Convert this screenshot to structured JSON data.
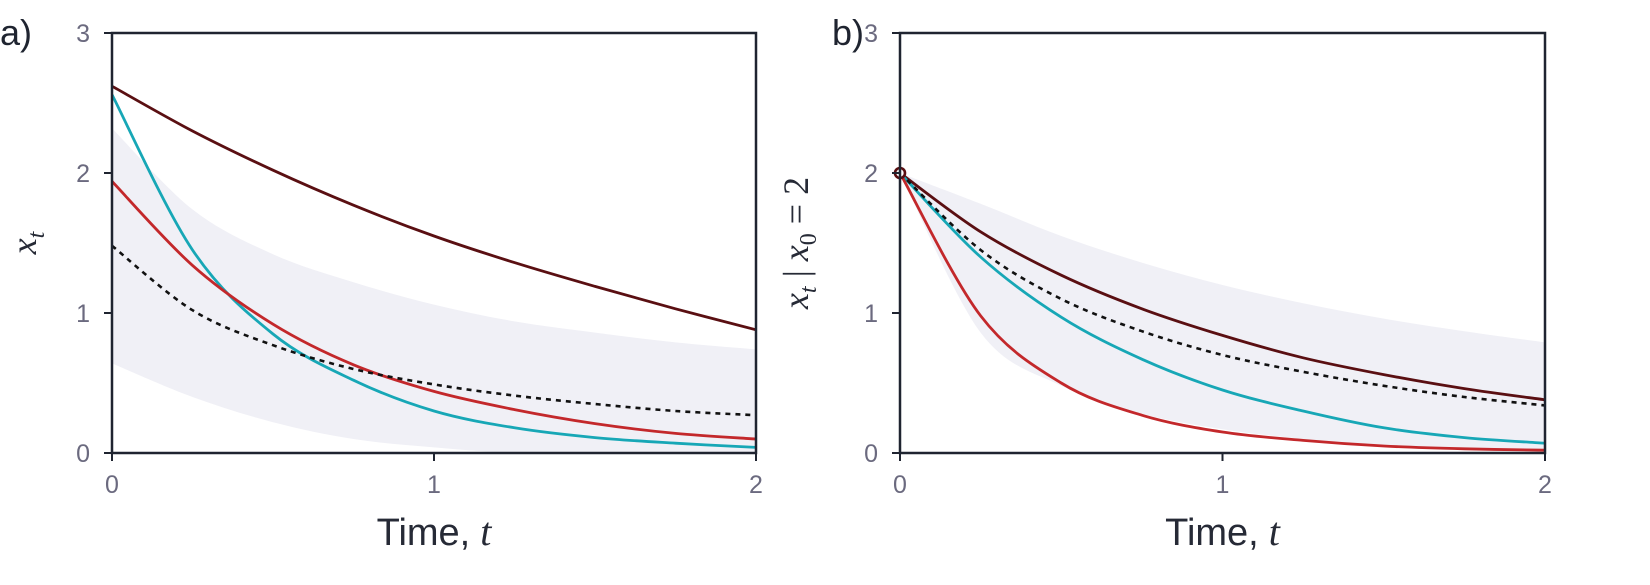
{
  "chart_data": [
    {
      "type": "line",
      "panel_label": "a)",
      "xlabel": "Time,",
      "xlabel_var": "t",
      "ylabel": {
        "main": "x",
        "sub": "t",
        "tail": "",
        "rhs_main": "",
        "rhs_sub": "",
        "rhs_value": ""
      },
      "xlim": [
        0,
        2
      ],
      "ylim": [
        0,
        3
      ],
      "xticks": [
        "0",
        "1",
        "2"
      ],
      "yticks": [
        "0",
        "1",
        "2",
        "3"
      ],
      "grid": false,
      "band": {
        "color": "#f0f0f6",
        "x": [
          0,
          0.25,
          0.5,
          0.75,
          1.0,
          1.25,
          1.5,
          1.75,
          2.0
        ],
        "upper": [
          2.32,
          1.74,
          1.42,
          1.22,
          1.06,
          0.94,
          0.86,
          0.79,
          0.74
        ],
        "lower": [
          0.64,
          0.4,
          0.22,
          0.1,
          0.04,
          0.0,
          0.0,
          0.0,
          0.0
        ]
      },
      "series": [
        {
          "color": "#5a0f12",
          "dashed": false,
          "x": [
            0,
            0.25,
            0.5,
            0.75,
            1.0,
            1.25,
            1.5,
            1.75,
            2.0
          ],
          "y": [
            2.62,
            2.3,
            2.02,
            1.77,
            1.55,
            1.36,
            1.19,
            1.03,
            0.88
          ]
        },
        {
          "color": "#17a7b6",
          "dashed": false,
          "x": [
            0,
            0.25,
            0.5,
            0.75,
            1.0,
            1.25,
            1.5,
            1.75,
            2.0
          ],
          "y": [
            2.56,
            1.45,
            0.85,
            0.52,
            0.3,
            0.18,
            0.11,
            0.07,
            0.04
          ]
        },
        {
          "color": "#c3282b",
          "dashed": false,
          "x": [
            0,
            0.25,
            0.5,
            0.75,
            1.0,
            1.25,
            1.5,
            1.75,
            2.0
          ],
          "y": [
            1.94,
            1.34,
            0.92,
            0.63,
            0.44,
            0.31,
            0.21,
            0.14,
            0.1
          ]
        },
        {
          "color": "#111111",
          "dashed": true,
          "x": [
            0,
            0.25,
            0.5,
            0.75,
            1.0,
            1.25,
            1.5,
            1.75,
            2.0
          ],
          "y": [
            1.48,
            1.02,
            0.77,
            0.6,
            0.49,
            0.41,
            0.35,
            0.3,
            0.27
          ]
        }
      ]
    },
    {
      "type": "line",
      "panel_label": "b)",
      "xlabel": "Time,",
      "xlabel_var": "t",
      "ylabel": {
        "main": "x",
        "sub": "t",
        "tail": " | ",
        "rhs_main": "x",
        "rhs_sub": "0",
        "rhs_value": " = 2"
      },
      "xlim": [
        0,
        2
      ],
      "ylim": [
        0,
        3
      ],
      "xticks": [
        "0",
        "1",
        "2"
      ],
      "yticks": [
        "0",
        "1",
        "2",
        "3"
      ],
      "grid": false,
      "start_point": {
        "x": 0,
        "y": 2,
        "color": "#5a0f12"
      },
      "band": {
        "color": "#f0f0f6",
        "x": [
          0,
          0.25,
          0.5,
          0.75,
          1.0,
          1.25,
          1.5,
          1.75,
          2.0
        ],
        "upper": [
          2.0,
          1.78,
          1.55,
          1.36,
          1.2,
          1.07,
          0.96,
          0.87,
          0.79
        ],
        "lower": [
          2.0,
          0.86,
          0.48,
          0.28,
          0.17,
          0.1,
          0.06,
          0.03,
          0.02
        ]
      },
      "series": [
        {
          "color": "#5a0f12",
          "dashed": false,
          "x": [
            0,
            0.25,
            0.5,
            0.75,
            1.0,
            1.25,
            1.5,
            1.75,
            2.0
          ],
          "y": [
            2.0,
            1.58,
            1.27,
            1.03,
            0.84,
            0.68,
            0.56,
            0.46,
            0.38
          ]
        },
        {
          "color": "#17a7b6",
          "dashed": false,
          "x": [
            0,
            0.25,
            0.5,
            0.75,
            1.0,
            1.25,
            1.5,
            1.75,
            2.0
          ],
          "y": [
            2.0,
            1.4,
            0.97,
            0.67,
            0.45,
            0.3,
            0.18,
            0.11,
            0.07
          ]
        },
        {
          "color": "#c3282b",
          "dashed": false,
          "x": [
            0,
            0.25,
            0.5,
            0.75,
            1.0,
            1.25,
            1.5,
            1.75,
            2.0
          ],
          "y": [
            2.0,
            0.98,
            0.5,
            0.27,
            0.15,
            0.09,
            0.05,
            0.03,
            0.02
          ]
        },
        {
          "color": "#111111",
          "dashed": true,
          "x": [
            0,
            0.25,
            0.5,
            0.75,
            1.0,
            1.25,
            1.5,
            1.75,
            2.0
          ],
          "y": [
            2.0,
            1.45,
            1.1,
            0.87,
            0.7,
            0.58,
            0.48,
            0.4,
            0.34
          ]
        }
      ]
    }
  ]
}
